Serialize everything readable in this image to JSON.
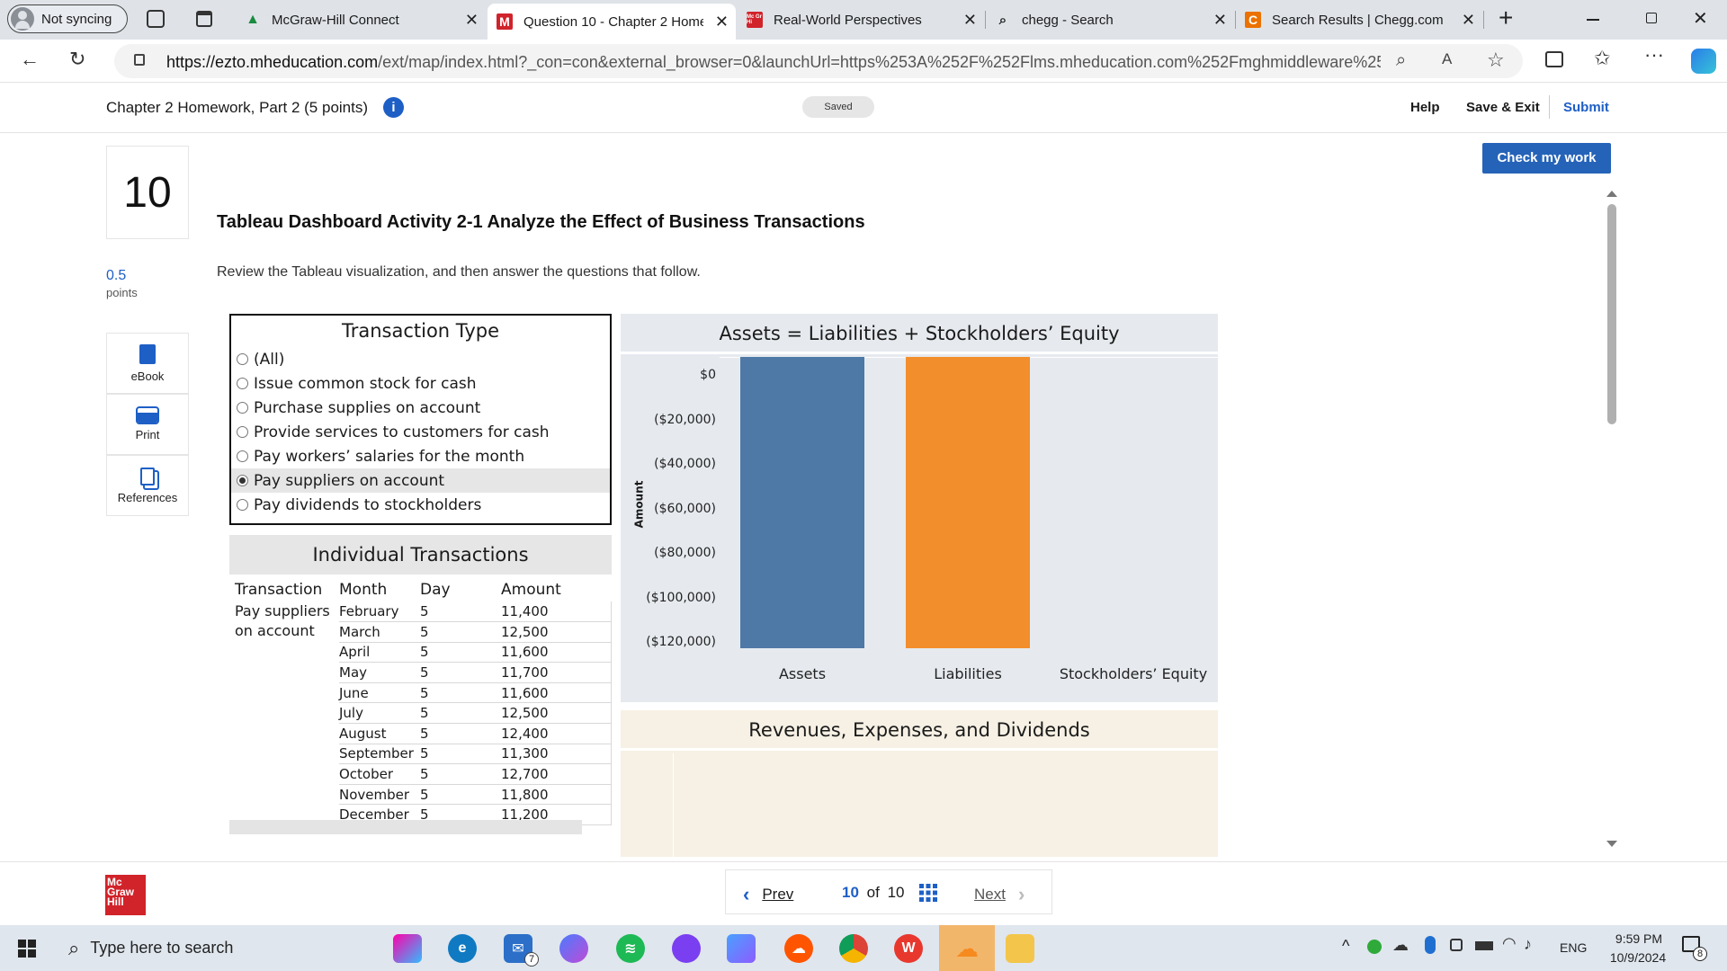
{
  "browser": {
    "profile_label": "Not syncing",
    "tabs": [
      {
        "title": "McGraw-Hill Connect"
      },
      {
        "title": "Question 10 - Chapter 2 Home"
      },
      {
        "title": "Real-World Perspectives"
      },
      {
        "title": "chegg - Search"
      },
      {
        "title": "Search Results | Chegg.com"
      }
    ],
    "url_host": "https://ezto.mheducation.com",
    "url_rest": "/ext/map/index.html?_con=con&external_browser=0&launchUrl=https%253A%252F%252Flms.mheducation.com%252Fmghmiddleware%252..."
  },
  "header": {
    "assignment_title": "Chapter 2 Homework, Part 2 (5 points)",
    "saved_badge": "Saved",
    "help": "Help",
    "save_exit": "Save & Exit",
    "submit": "Submit",
    "check_work": "Check my work"
  },
  "question": {
    "number": "10",
    "points_value": "0.5",
    "points_label": "points",
    "title": "Tableau Dashboard Activity 2-1 Analyze the Effect of Business Transactions",
    "instruction": "Review the Tableau visualization, and then answer the questions that follow."
  },
  "tools": [
    {
      "label": "eBook"
    },
    {
      "label": "Print"
    },
    {
      "label": "References"
    }
  ],
  "filter": {
    "title": "Transaction Type",
    "options": [
      {
        "label": "(All)",
        "selected": false
      },
      {
        "label": "Issue common stock for cash",
        "selected": false
      },
      {
        "label": "Purchase supplies on account",
        "selected": false
      },
      {
        "label": "Provide services to customers for cash",
        "selected": false
      },
      {
        "label": "Pay workers’ salaries for the month",
        "selected": false
      },
      {
        "label": "Pay suppliers on account",
        "selected": true
      },
      {
        "label": "Pay dividends to stockholders",
        "selected": false
      }
    ]
  },
  "transactions": {
    "title": "Individual Transactions",
    "columns": [
      "Transaction",
      "Month",
      "Day",
      "Amount"
    ],
    "transaction_name": "Pay suppliers on account",
    "rows": [
      {
        "month": "February",
        "day": "5",
        "amount": "11,400"
      },
      {
        "month": "March",
        "day": "5",
        "amount": "12,500"
      },
      {
        "month": "April",
        "day": "5",
        "amount": "11,600"
      },
      {
        "month": "May",
        "day": "5",
        "amount": "11,700"
      },
      {
        "month": "June",
        "day": "5",
        "amount": "11,600"
      },
      {
        "month": "July",
        "day": "5",
        "amount": "12,500"
      },
      {
        "month": "August",
        "day": "5",
        "amount": "12,400"
      },
      {
        "month": "September",
        "day": "5",
        "amount": "11,300"
      },
      {
        "month": "October",
        "day": "5",
        "amount": "12,700"
      },
      {
        "month": "November",
        "day": "5",
        "amount": "11,800"
      },
      {
        "month": "December",
        "day": "5",
        "amount": "11,200"
      }
    ]
  },
  "chart_data": {
    "type": "bar",
    "title": "Assets = Liabilities + Stockholders’ Equity",
    "ylabel": "Amount",
    "categories": [
      "Assets",
      "Liabilities",
      "Stockholders’ Equity"
    ],
    "values": [
      -130700,
      -130700,
      0
    ],
    "colors": [
      "#4e79a7",
      "#f28e2b",
      "#4e79a7"
    ],
    "ylim": [
      -130700,
      0
    ],
    "yticks": [
      0,
      -20000,
      -40000,
      -60000,
      -80000,
      -100000,
      -120000
    ],
    "ytick_labels": [
      "$0",
      "($20,000)",
      "($40,000)",
      "($60,000)",
      "($80,000)",
      "($100,000)",
      "($120,000)"
    ],
    "grid": false
  },
  "revenue_panel": {
    "title": "Revenues, Expenses, and Dividends"
  },
  "footer": {
    "brand": "Mc Graw Hill",
    "prev": "Prev",
    "page_current": "10",
    "page_of": "of",
    "page_total": "10",
    "next": "Next"
  },
  "taskbar": {
    "search_placeholder": "Type here to search",
    "mail_badge": "7",
    "language": "ENG",
    "time": "9:59 PM",
    "date": "10/9/2024",
    "notification_count": "8"
  }
}
